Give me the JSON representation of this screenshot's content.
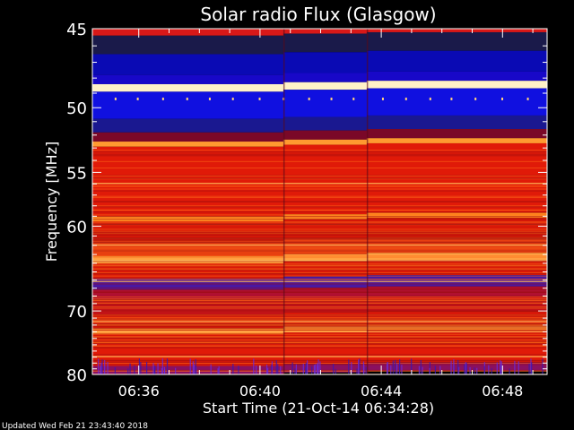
{
  "chart_data": {
    "type": "heatmap",
    "title": "Solar radio Flux (Glasgow)",
    "xlabel": "Start Time (21-Oct-14 06:34:28)",
    "ylabel": "Frequency [MHz]",
    "x_tick_labels": [
      "06:36",
      "06:40",
      "06:44",
      "06:48"
    ],
    "x_tick_minutes": [
      1.53,
      5.53,
      9.53,
      13.53
    ],
    "xlim_minutes": [
      0,
      15
    ],
    "y_tick_labels": [
      "45",
      "50",
      "55",
      "60",
      "70",
      "80"
    ],
    "y_ticks": [
      45,
      50,
      55,
      60,
      70,
      80
    ],
    "ylim": [
      45,
      80
    ],
    "y_scale": "inverted-log-frequency",
    "segment_breaks_minutes": [
      6.3,
      9.05
    ],
    "bands": [
      {
        "from": 45.0,
        "to": 45.4,
        "color": "#d81818"
      },
      {
        "from": 45.4,
        "to": 46.5,
        "color": "#1a1a4a"
      },
      {
        "from": 46.5,
        "to": 47.8,
        "color": "#0a0ab4"
      },
      {
        "from": 47.8,
        "to": 48.4,
        "color": "#1808c8"
      },
      {
        "from": 48.4,
        "to": 48.9,
        "color": "#fff2c8"
      },
      {
        "from": 48.9,
        "to": 50.8,
        "color": "#1010e0"
      },
      {
        "from": 50.8,
        "to": 51.8,
        "color": "#1a1890"
      },
      {
        "from": 51.8,
        "to": 52.5,
        "color": "#7a0828"
      },
      {
        "from": 52.5,
        "to": 52.9,
        "color": "#ff9a30"
      },
      {
        "from": 52.9,
        "to": 59.0,
        "color": "#e01a08"
      },
      {
        "from": 59.0,
        "to": 59.5,
        "color": "#ff8a20"
      },
      {
        "from": 59.5,
        "to": 61.5,
        "color": "#d81808"
      },
      {
        "from": 61.5,
        "to": 63.2,
        "color": "#e84010"
      },
      {
        "from": 63.2,
        "to": 64.0,
        "color": "#ffa040"
      },
      {
        "from": 64.0,
        "to": 65.8,
        "color": "#d81808"
      },
      {
        "from": 65.8,
        "to": 67.2,
        "color": "#4a18a0"
      },
      {
        "from": 67.2,
        "to": 68.5,
        "color": "#b01030"
      },
      {
        "from": 68.5,
        "to": 70.5,
        "color": "#c81418"
      },
      {
        "from": 70.5,
        "to": 72.5,
        "color": "#e01a08"
      },
      {
        "from": 72.5,
        "to": 73.3,
        "color": "#ff9030"
      },
      {
        "from": 73.3,
        "to": 75.5,
        "color": "#d81808"
      },
      {
        "from": 75.5,
        "to": 78.5,
        "color": "#e01a08"
      },
      {
        "from": 78.5,
        "to": 80.0,
        "color": "#8a1060"
      }
    ],
    "colors": {
      "background": "#000000",
      "axis": "#ffffff",
      "text": "#ffffff"
    }
  },
  "footer": {
    "updated_text": "Updated Wed Feb 21 23:43:40 2018"
  }
}
